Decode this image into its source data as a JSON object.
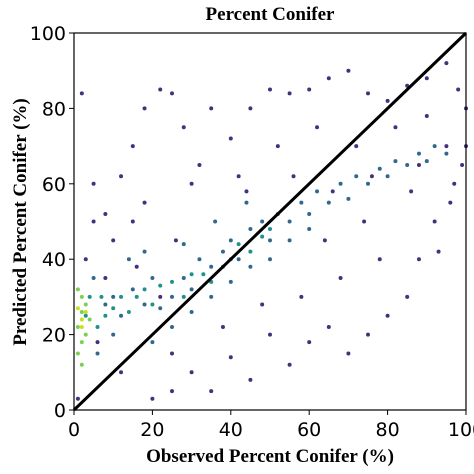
{
  "chart_data": {
    "type": "scatter",
    "title": "Percent Conifer",
    "x_label": "Observed Percent Conifer (%)",
    "y_label": "Predicted Percent Conifer (%)",
    "xlim": [
      0,
      100
    ],
    "ylim": [
      0,
      100
    ],
    "xticks": [
      0,
      20,
      40,
      60,
      80,
      100
    ],
    "yticks": [
      0,
      20,
      40,
      60,
      80,
      100
    ],
    "reference_line": {
      "x": [
        0,
        100
      ],
      "values": [
        0,
        100
      ],
      "color": "#000000"
    },
    "series": [
      {
        "color": "#46307e",
        "x": [
          2,
          5,
          8,
          12,
          15,
          18,
          22,
          25,
          28,
          30,
          25,
          35,
          40,
          45,
          50,
          55,
          60,
          65,
          70,
          75,
          80,
          85,
          90,
          95,
          98,
          100,
          97,
          92,
          88,
          85,
          80,
          75,
          70,
          65,
          60,
          55,
          50,
          45,
          40,
          35,
          20,
          10,
          5,
          3,
          15,
          30,
          42,
          52,
          62,
          72,
          82,
          90,
          95,
          99,
          93,
          78,
          68,
          58,
          48,
          38,
          25,
          12,
          8,
          18,
          32,
          44,
          56,
          66,
          76,
          86,
          96,
          100,
          88,
          74,
          64,
          26,
          16,
          22,
          6,
          1
        ],
        "values": [
          84,
          60,
          52,
          62,
          70,
          80,
          85,
          84,
          75,
          10,
          5,
          80,
          72,
          80,
          85,
          84,
          85,
          88,
          90,
          84,
          82,
          86,
          88,
          92,
          85,
          70,
          60,
          50,
          40,
          30,
          25,
          20,
          15,
          22,
          18,
          12,
          20,
          8,
          14,
          5,
          3,
          45,
          50,
          40,
          50,
          60,
          62,
          70,
          75,
          70,
          75,
          78,
          70,
          65,
          42,
          40,
          35,
          30,
          28,
          22,
          15,
          10,
          35,
          55,
          65,
          58,
          62,
          58,
          62,
          58,
          55,
          80,
          65,
          50,
          45,
          45,
          38,
          30,
          18,
          3
        ]
      },
      {
        "color": "#31688e",
        "x": [
          5,
          8,
          10,
          12,
          15,
          18,
          20,
          22,
          25,
          28,
          30,
          32,
          35,
          38,
          40,
          42,
          45,
          48,
          50,
          52,
          55,
          58,
          60,
          62,
          65,
          68,
          70,
          72,
          75,
          78,
          80,
          82,
          85,
          88,
          90,
          92,
          95,
          20,
          25,
          30,
          35,
          40,
          45,
          50,
          55,
          60,
          14,
          18,
          28,
          36,
          44,
          10,
          6
        ],
        "values": [
          35,
          28,
          30,
          25,
          32,
          28,
          35,
          27,
          30,
          35,
          32,
          40,
          38,
          42,
          45,
          40,
          48,
          50,
          45,
          52,
          50,
          55,
          52,
          58,
          55,
          60,
          56,
          62,
          60,
          64,
          62,
          66,
          65,
          68,
          66,
          70,
          68,
          18,
          22,
          26,
          30,
          34,
          38,
          40,
          45,
          48,
          40,
          42,
          44,
          50,
          55,
          20,
          15
        ]
      },
      {
        "color": "#21918c",
        "x": [
          3,
          4,
          6,
          7,
          8,
          10,
          12,
          14,
          16,
          18,
          20,
          22,
          25,
          28,
          30,
          33,
          35,
          38,
          40,
          42,
          45,
          48,
          50
        ],
        "values": [
          25,
          30,
          22,
          30,
          25,
          27,
          30,
          26,
          30,
          32,
          28,
          33,
          34,
          30,
          36,
          36,
          34,
          38,
          40,
          44,
          42,
          46,
          48
        ]
      },
      {
        "color": "#7ad151",
        "x": [
          1,
          2,
          2,
          3,
          1,
          2,
          3,
          4,
          1,
          2
        ],
        "values": [
          22,
          26,
          30,
          20,
          15,
          12,
          28,
          24,
          32,
          18
        ]
      },
      {
        "color": "#c8e020",
        "x": [
          2,
          1,
          3,
          2
        ],
        "values": [
          24,
          27,
          26,
          22
        ]
      }
    ]
  }
}
